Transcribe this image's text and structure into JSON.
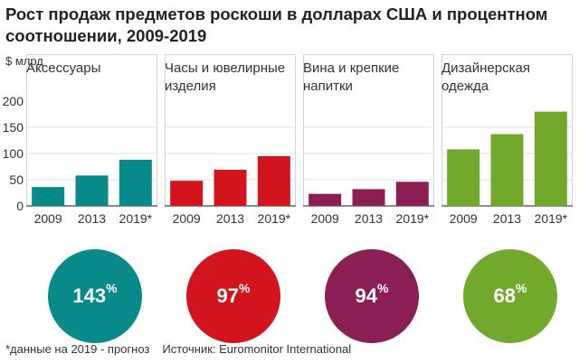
{
  "title": "Рост продаж предметов роскоши в долларах США и процентном соотношении, 2009-2019",
  "footnote": "*данные на 2019 - прогноз",
  "source": "Источник: Euromonitor International",
  "chart_data": {
    "type": "bar",
    "ylabel": "$ млрд",
    "ylim": [
      0,
      200
    ],
    "yticks": [
      "200",
      "150",
      "100",
      "50",
      "0"
    ],
    "categories": [
      "2009",
      "2013",
      "2019*"
    ],
    "panels": [
      {
        "label": "Аксессуары",
        "color": "#078a89",
        "values": [
          36,
          58,
          88
        ],
        "growth": "143",
        "growth_unit": "%"
      },
      {
        "label": "Часы и ювелирные изделия",
        "color": "#d2141c",
        "values": [
          48,
          69,
          95
        ],
        "growth": "97",
        "growth_unit": "%"
      },
      {
        "label": "Вина и крепкие напитки",
        "color": "#8c1e56",
        "values": [
          23,
          32,
          46
        ],
        "growth": "94",
        "growth_unit": "%"
      },
      {
        "label": "Дизайнерская одежда",
        "color": "#72a92c",
        "values": [
          108,
          137,
          180
        ],
        "growth": "68",
        "growth_unit": "%"
      }
    ]
  }
}
